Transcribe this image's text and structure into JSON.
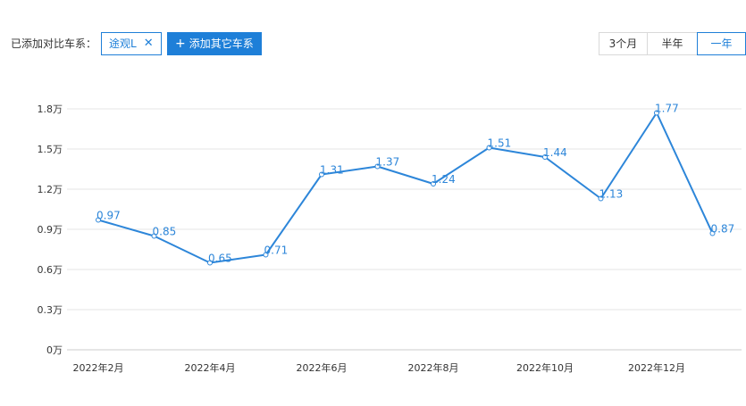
{
  "toolbar": {
    "compare_label": "已添加对比车系：",
    "car_tag": {
      "label": "途观L",
      "close_icon": "close-icon"
    },
    "add_button": {
      "label": "添加其它车系",
      "icon": "plus-icon"
    },
    "ranges": [
      {
        "label": "3个月",
        "selected": false
      },
      {
        "label": "半年",
        "selected": false
      },
      {
        "label": "一年",
        "selected": true
      }
    ]
  },
  "colors": {
    "accent": "#1e7fd8",
    "line": "#2d86d9",
    "grid": "#e6e6e6"
  },
  "chart_data": {
    "type": "line",
    "title": "",
    "xlabel": "",
    "ylabel": "",
    "x": [
      "2022-02",
      "2022-03",
      "2022-04",
      "2022-05",
      "2022-06",
      "2022-07",
      "2022-08",
      "2022-09",
      "2022-10",
      "2022-11",
      "2022-12",
      "2023-01"
    ],
    "x_tick_labels": [
      "2022年2月",
      "2022年4月",
      "2022年6月",
      "2022年8月",
      "2022年10月",
      "2022年12月"
    ],
    "y_tick_labels": [
      "0万",
      "0.3万",
      "0.6万",
      "0.9万",
      "1.2万",
      "1.5万",
      "1.8万"
    ],
    "y_ticks": [
      0,
      0.3,
      0.6,
      0.9,
      1.2,
      1.5,
      1.8
    ],
    "ylim": [
      0,
      1.8
    ],
    "grid": true,
    "series": [
      {
        "values": [
          0.97,
          0.85,
          0.65,
          0.71,
          1.31,
          1.37,
          1.24,
          1.51,
          1.44,
          1.13,
          1.77,
          0.87
        ],
        "labels": [
          "0.97",
          "0.85",
          "0.65",
          "0.71",
          "1.31",
          "1.37",
          "1.24",
          "1.51",
          "1.44",
          "1.13",
          "1.77",
          "0.87"
        ]
      }
    ]
  }
}
